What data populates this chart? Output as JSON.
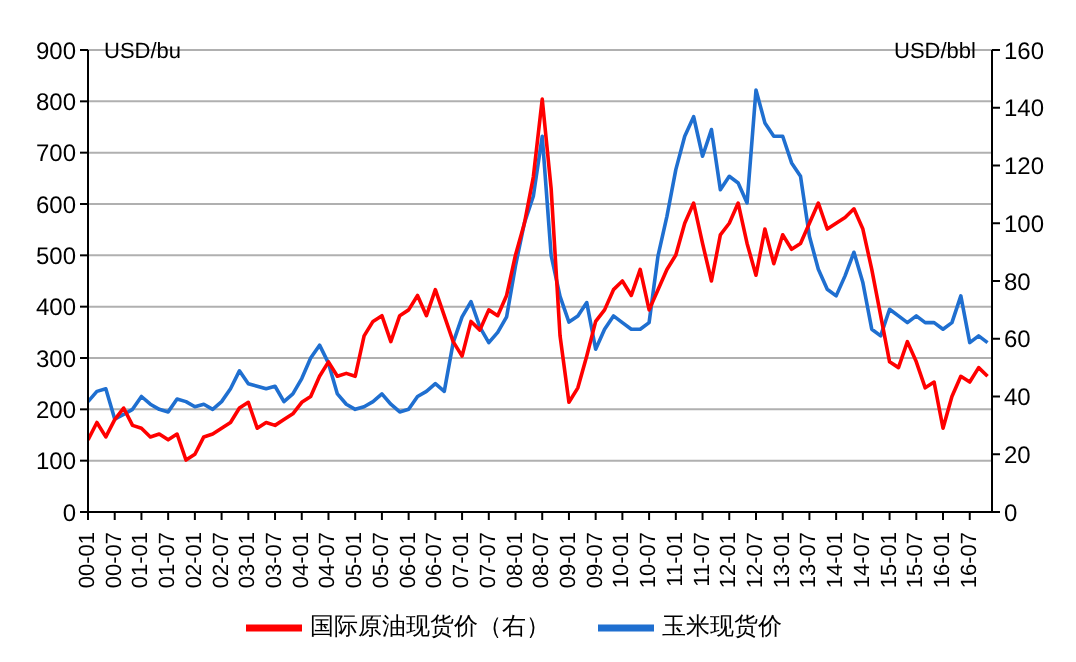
{
  "chart_data": {
    "type": "line",
    "ylabel": "USD/bu",
    "y2label": "USD/bbl",
    "x": [
      "2000-01",
      "2000-03",
      "2000-05",
      "2000-07",
      "2000-09",
      "2000-11",
      "2001-01",
      "2001-03",
      "2001-05",
      "2001-07",
      "2001-09",
      "2001-11",
      "2002-01",
      "2002-03",
      "2002-05",
      "2002-07",
      "2002-09",
      "2002-11",
      "2003-01",
      "2003-03",
      "2003-05",
      "2003-07",
      "2003-09",
      "2003-11",
      "2004-01",
      "2004-03",
      "2004-05",
      "2004-07",
      "2004-09",
      "2004-11",
      "2005-01",
      "2005-03",
      "2005-05",
      "2005-07",
      "2005-09",
      "2005-11",
      "2006-01",
      "2006-03",
      "2006-05",
      "2006-07",
      "2006-09",
      "2006-11",
      "2007-01",
      "2007-03",
      "2007-05",
      "2007-07",
      "2007-09",
      "2007-11",
      "2008-01",
      "2008-03",
      "2008-05",
      "2008-07",
      "2008-09",
      "2008-11",
      "2009-01",
      "2009-03",
      "2009-05",
      "2009-07",
      "2009-09",
      "2009-11",
      "2010-01",
      "2010-03",
      "2010-05",
      "2010-07",
      "2010-09",
      "2010-11",
      "2011-01",
      "2011-03",
      "2011-05",
      "2011-07",
      "2011-09",
      "2011-11",
      "2012-01",
      "2012-03",
      "2012-05",
      "2012-07",
      "2012-09",
      "2012-11",
      "2013-01",
      "2013-03",
      "2013-05",
      "2013-07",
      "2013-09",
      "2013-11",
      "2014-01",
      "2014-03",
      "2014-05",
      "2014-07",
      "2014-09",
      "2014-11",
      "2015-01",
      "2015-03",
      "2015-05",
      "2015-07",
      "2015-09",
      "2015-11",
      "2016-01",
      "2016-03",
      "2016-05",
      "2016-07",
      "2016-09",
      "2016-11"
    ],
    "series": [
      {
        "name": "玉米现货价",
        "color": "#1f6fd0",
        "values": [
          215,
          235,
          240,
          181,
          190,
          200,
          225,
          210,
          200,
          195,
          220,
          215,
          205,
          210,
          200,
          215,
          240,
          275,
          250,
          245,
          240,
          245,
          215,
          230,
          260,
          300,
          325,
          290,
          230,
          210,
          200,
          205,
          215,
          230,
          210,
          195,
          200,
          225,
          235,
          250,
          235,
          330,
          380,
          410,
          360,
          330,
          350,
          380,
          480,
          563,
          615,
          732,
          500,
          420,
          370,
          382,
          408,
          317,
          356,
          382,
          369,
          356,
          356,
          369,
          499,
          576,
          667,
          732,
          770,
          693,
          745,
          628,
          654,
          641,
          602,
          822,
          758,
          732,
          732,
          680,
          654,
          537,
          473,
          434,
          421,
          460,
          506,
          447,
          356,
          343,
          395,
          382,
          369,
          382,
          369,
          369,
          356,
          369,
          421,
          330,
          343,
          330
        ]
      },
      {
        "name": "国际原油现货价（右）",
        "color": "#ff0000",
        "axis": "y2",
        "values": [
          25,
          31,
          26,
          32,
          36,
          30,
          29,
          26,
          27,
          25,
          27,
          18,
          20,
          26,
          27,
          29,
          31,
          36,
          38,
          29,
          31,
          30,
          32,
          34,
          38,
          40,
          47,
          52,
          47,
          48,
          47,
          61,
          66,
          68,
          59,
          68,
          70,
          75,
          68,
          77,
          68,
          59,
          54,
          66,
          63,
          70,
          68,
          75,
          89,
          100,
          116,
          143,
          112,
          61,
          38,
          43,
          54,
          66,
          70,
          77,
          80,
          75,
          84,
          70,
          77,
          84,
          89,
          100,
          107,
          93,
          80,
          96,
          100,
          107,
          93,
          82,
          98,
          86,
          96,
          91,
          93,
          100,
          107,
          98,
          100,
          102,
          105,
          98,
          84,
          68,
          52,
          50,
          59,
          52,
          43,
          45,
          29,
          40,
          47,
          45,
          50,
          47
        ]
      }
    ],
    "xlim": [
      "2000-01",
      "2016-12"
    ],
    "xticks": [
      {
        "value": "2000-01",
        "label": "00-01"
      },
      {
        "value": "2000-07",
        "label": "00-07"
      },
      {
        "value": "2001-01",
        "label": "01-01"
      },
      {
        "value": "2001-07",
        "label": "01-07"
      },
      {
        "value": "2002-01",
        "label": "02-01"
      },
      {
        "value": "2002-07",
        "label": "02-07"
      },
      {
        "value": "2003-01",
        "label": "03-01"
      },
      {
        "value": "2003-07",
        "label": "03-07"
      },
      {
        "value": "2004-01",
        "label": "04-01"
      },
      {
        "value": "2004-07",
        "label": "04-07"
      },
      {
        "value": "2005-01",
        "label": "05-01"
      },
      {
        "value": "2005-07",
        "label": "05-07"
      },
      {
        "value": "2006-01",
        "label": "06-01"
      },
      {
        "value": "2006-07",
        "label": "06-07"
      },
      {
        "value": "2007-01",
        "label": "07-01"
      },
      {
        "value": "2007-07",
        "label": "07-07"
      },
      {
        "value": "2008-01",
        "label": "08-01"
      },
      {
        "value": "2008-07",
        "label": "08-07"
      },
      {
        "value": "2009-01",
        "label": "09-01"
      },
      {
        "value": "2009-07",
        "label": "09-07"
      },
      {
        "value": "2010-01",
        "label": "10-01"
      },
      {
        "value": "2010-07",
        "label": "10-07"
      },
      {
        "value": "2011-01",
        "label": "11-01"
      },
      {
        "value": "2011-07",
        "label": "11-07"
      },
      {
        "value": "2012-01",
        "label": "12-01"
      },
      {
        "value": "2012-07",
        "label": "12-07"
      },
      {
        "value": "2013-01",
        "label": "13-01"
      },
      {
        "value": "2013-07",
        "label": "13-07"
      },
      {
        "value": "2014-01",
        "label": "14-01"
      },
      {
        "value": "2014-07",
        "label": "14-07"
      },
      {
        "value": "2015-01",
        "label": "15-01"
      },
      {
        "value": "2015-07",
        "label": "15-07"
      },
      {
        "value": "2016-01",
        "label": "16-01"
      },
      {
        "value": "2016-07",
        "label": "16-07"
      }
    ],
    "ylim": [
      0,
      900
    ],
    "yticks": [
      0,
      100,
      200,
      300,
      400,
      500,
      600,
      700,
      800,
      900
    ],
    "y2lim": [
      0,
      160
    ],
    "y2ticks": [
      0,
      20,
      40,
      60,
      80,
      100,
      120,
      140,
      160
    ],
    "grid": "y",
    "legend": "bottom",
    "marker": "none",
    "line_style": "solid"
  }
}
